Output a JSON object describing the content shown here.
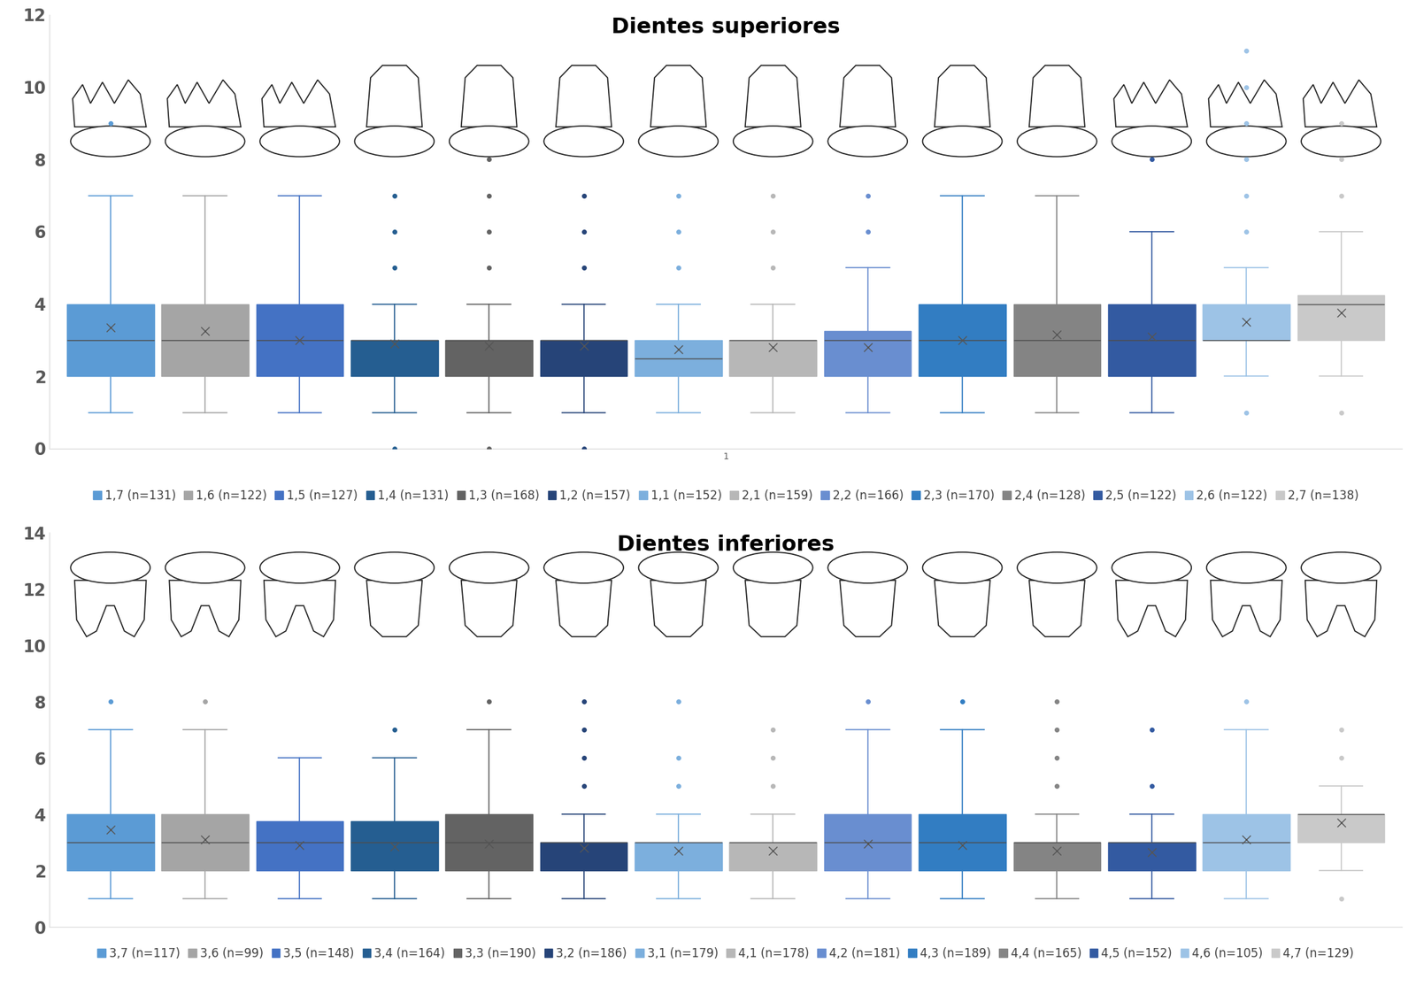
{
  "chart_data": [
    {
      "type": "box",
      "title": "Dientes superiores",
      "categories": [
        "1"
      ],
      "ylim": [
        0,
        12
      ],
      "yticks": [
        0,
        2,
        4,
        6,
        8,
        10,
        12
      ],
      "grid": false,
      "legend": "bottom",
      "series": [
        {
          "name": "1,7 (n=131)",
          "color": "#5b9bd5",
          "q1": 2,
          "median": 3,
          "q3": 4,
          "whisker_low": 1,
          "whisker_high": 7,
          "mean": 3.35,
          "outliers": [
            9
          ]
        },
        {
          "name": "1,6 (n=122)",
          "color": "#a5a5a5",
          "q1": 2,
          "median": 3,
          "q3": 4,
          "whisker_low": 1,
          "whisker_high": 7,
          "mean": 3.25,
          "outliers": []
        },
        {
          "name": "1,5 (n=127)",
          "color": "#4472c4",
          "q1": 2,
          "median": 3,
          "q3": 4,
          "whisker_low": 1,
          "whisker_high": 7,
          "mean": 3.0,
          "outliers": []
        },
        {
          "name": "1,4 (n=131)",
          "color": "#255e91",
          "q1": 2,
          "median": 3,
          "q3": 3,
          "whisker_low": 1,
          "whisker_high": 4,
          "mean": 2.9,
          "outliers": [
            0,
            5,
            6,
            7
          ]
        },
        {
          "name": "1,3 (n=168)",
          "color": "#636363",
          "q1": 2,
          "median": 3,
          "q3": 3,
          "whisker_low": 1,
          "whisker_high": 4,
          "mean": 2.85,
          "outliers": [
            0,
            5,
            6,
            7,
            8
          ]
        },
        {
          "name": "1,2 (n=157)",
          "color": "#264478",
          "q1": 2,
          "median": 3,
          "q3": 3,
          "whisker_low": 1,
          "whisker_high": 4,
          "mean": 2.85,
          "outliers": [
            0,
            5,
            6,
            7
          ]
        },
        {
          "name": "1,1 (n=152)",
          "color": "#7cafdd",
          "q1": 2,
          "median": 2.5,
          "q3": 3,
          "whisker_low": 1,
          "whisker_high": 4,
          "mean": 2.75,
          "outliers": [
            5,
            6,
            7
          ]
        },
        {
          "name": "2,1 (n=159)",
          "color": "#b7b7b7",
          "q1": 2,
          "median": 3,
          "q3": 3,
          "whisker_low": 1,
          "whisker_high": 4,
          "mean": 2.8,
          "outliers": [
            5,
            6,
            7
          ]
        },
        {
          "name": "2,2 (n=166)",
          "color": "#698ed0",
          "q1": 2,
          "median": 3,
          "q3": 3.25,
          "whisker_low": 1,
          "whisker_high": 5,
          "mean": 2.8,
          "outliers": [
            6,
            7
          ]
        },
        {
          "name": "2,3 (n=170)",
          "color": "#327dc2",
          "q1": 2,
          "median": 3,
          "q3": 4,
          "whisker_low": 1,
          "whisker_high": 7,
          "mean": 3.0,
          "outliers": []
        },
        {
          "name": "2,4 (n=128)",
          "color": "#848484",
          "q1": 2,
          "median": 3,
          "q3": 4,
          "whisker_low": 1,
          "whisker_high": 7,
          "mean": 3.15,
          "outliers": []
        },
        {
          "name": "2,5 (n=122)",
          "color": "#335aa1",
          "q1": 2,
          "median": 3,
          "q3": 4,
          "whisker_low": 1,
          "whisker_high": 6,
          "mean": 3.1,
          "outliers": [
            8
          ]
        },
        {
          "name": "2,6 (n=122)",
          "color": "#9dc3e6",
          "q1": 3,
          "median": 3,
          "q3": 4,
          "whisker_low": 2,
          "whisker_high": 5,
          "mean": 3.5,
          "outliers": [
            1,
            6,
            7,
            8,
            9,
            10,
            11
          ]
        },
        {
          "name": "2,7 (n=138)",
          "color": "#c9c9c9",
          "q1": 3,
          "median": 4,
          "q3": 4.25,
          "whisker_low": 2,
          "whisker_high": 6,
          "mean": 3.75,
          "outliers": [
            1,
            7,
            8,
            9
          ]
        }
      ]
    },
    {
      "type": "box",
      "title": "Dientes inferiores",
      "categories": [
        null
      ],
      "ylim": [
        0,
        14
      ],
      "yticks": [
        0,
        2,
        4,
        6,
        8,
        10,
        12,
        14
      ],
      "grid": false,
      "legend": "bottom",
      "series": [
        {
          "name": "3,7 (n=117)",
          "color": "#5b9bd5",
          "q1": 2,
          "median": 3,
          "q3": 4,
          "whisker_low": 1,
          "whisker_high": 7,
          "mean": 3.45,
          "outliers": [
            8
          ]
        },
        {
          "name": "3,6 (n=99)",
          "color": "#a5a5a5",
          "q1": 2,
          "median": 3,
          "q3": 4,
          "whisker_low": 1,
          "whisker_high": 7,
          "mean": 3.1,
          "outliers": [
            8
          ]
        },
        {
          "name": "3,5 (n=148)",
          "color": "#4472c4",
          "q1": 2,
          "median": 3,
          "q3": 3.75,
          "whisker_low": 1,
          "whisker_high": 6,
          "mean": 2.9,
          "outliers": []
        },
        {
          "name": "3,4 (n=164)",
          "color": "#255e91",
          "q1": 2,
          "median": 3,
          "q3": 3.75,
          "whisker_low": 1,
          "whisker_high": 6,
          "mean": 2.85,
          "outliers": [
            7
          ]
        },
        {
          "name": "3,3 (n=190)",
          "color": "#636363",
          "q1": 2,
          "median": 3,
          "q3": 4,
          "whisker_low": 1,
          "whisker_high": 7,
          "mean": 2.95,
          "outliers": [
            8
          ]
        },
        {
          "name": "3,2 (n=186)",
          "color": "#264478",
          "q1": 2,
          "median": 3,
          "q3": 3,
          "whisker_low": 1,
          "whisker_high": 4,
          "mean": 2.8,
          "outliers": [
            5,
            6,
            7,
            8
          ]
        },
        {
          "name": "3,1 (n=179)",
          "color": "#7cafdd",
          "q1": 2,
          "median": 3,
          "q3": 3,
          "whisker_low": 1,
          "whisker_high": 4,
          "mean": 2.7,
          "outliers": [
            5,
            6,
            8
          ]
        },
        {
          "name": "4,1 (n=178)",
          "color": "#b7b7b7",
          "q1": 2,
          "median": 3,
          "q3": 3,
          "whisker_low": 1,
          "whisker_high": 4,
          "mean": 2.7,
          "outliers": [
            5,
            6,
            7
          ]
        },
        {
          "name": "4,2 (n=181)",
          "color": "#698ed0",
          "q1": 2,
          "median": 3,
          "q3": 4,
          "whisker_low": 1,
          "whisker_high": 7,
          "mean": 2.95,
          "outliers": [
            8
          ]
        },
        {
          "name": "4,3 (n=189)",
          "color": "#327dc2",
          "q1": 2,
          "median": 3,
          "q3": 4,
          "whisker_low": 1,
          "whisker_high": 7,
          "mean": 2.9,
          "outliers": [
            8
          ]
        },
        {
          "name": "4,4 (n=165)",
          "color": "#848484",
          "q1": 2,
          "median": 3,
          "q3": 3,
          "whisker_low": 1,
          "whisker_high": 4,
          "mean": 2.7,
          "outliers": [
            5,
            6,
            7,
            8
          ]
        },
        {
          "name": "4,5 (n=152)",
          "color": "#335aa1",
          "q1": 2,
          "median": 3,
          "q3": 3,
          "whisker_low": 1,
          "whisker_high": 4,
          "mean": 2.65,
          "outliers": [
            5,
            7
          ]
        },
        {
          "name": "4,6 (n=105)",
          "color": "#9dc3e6",
          "q1": 2,
          "median": 3,
          "q3": 4,
          "whisker_low": 1,
          "whisker_high": 7,
          "mean": 3.1,
          "outliers": [
            8
          ]
        },
        {
          "name": "4,7 (n=129)",
          "color": "#c9c9c9",
          "q1": 3,
          "median": 4,
          "q3": 4,
          "whisker_low": 2,
          "whisker_high": 5,
          "mean": 3.7,
          "outliers": [
            1,
            6,
            7
          ]
        }
      ]
    }
  ]
}
